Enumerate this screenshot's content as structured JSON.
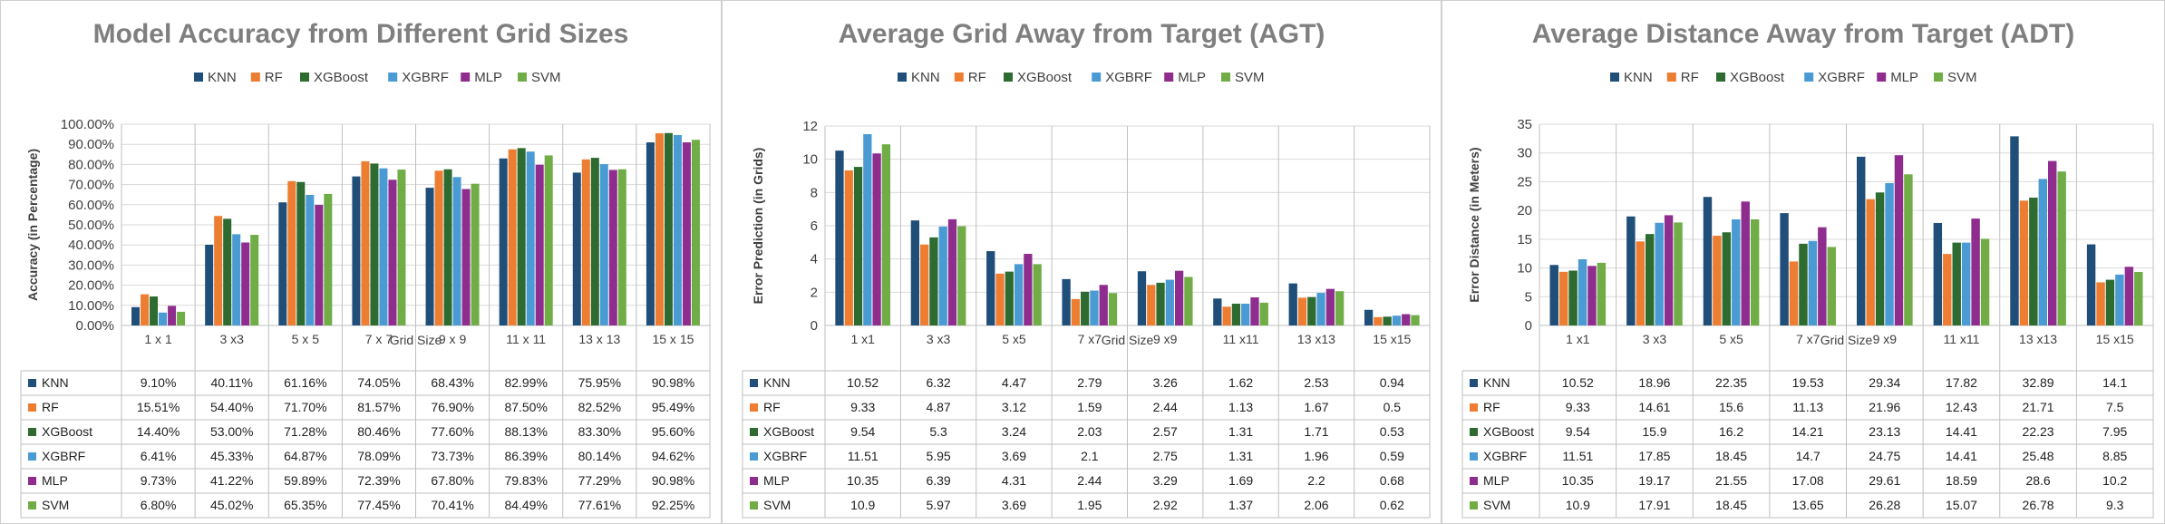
{
  "chart_data": [
    {
      "type": "bar",
      "title": "Model Accuracy from Different Grid Sizes",
      "xlabel": "Grid Size",
      "ylabel": "Accuracy (in Percentage)",
      "ylim": [
        0,
        100
      ],
      "ytick_values": [
        0,
        10,
        20,
        30,
        40,
        50,
        60,
        70,
        80,
        90,
        100
      ],
      "ytick_labels": [
        "0.00%",
        "10.00%",
        "20.00%",
        "30.00%",
        "40.00%",
        "50.00%",
        "60.00%",
        "70.00%",
        "80.00%",
        "90.00%",
        "100.00%"
      ],
      "categories": [
        "1 x 1",
        "3 x3",
        "5 x 5",
        "7 x 7",
        "9 x 9",
        "11 x 11",
        "13 x 13",
        "15 x 15"
      ],
      "legend_position": "top",
      "grid": true,
      "series": [
        {
          "name": "KNN",
          "color": "#1f4e79",
          "values": [
            9.1,
            40.11,
            61.16,
            74.05,
            68.43,
            82.99,
            75.95,
            90.98
          ],
          "labels": [
            "9.10%",
            "40.11%",
            "61.16%",
            "74.05%",
            "68.43%",
            "82.99%",
            "75.95%",
            "90.98%"
          ]
        },
        {
          "name": "RF",
          "color": "#ed7d31",
          "values": [
            15.51,
            54.4,
            71.7,
            81.57,
            76.9,
            87.5,
            82.52,
            95.49
          ],
          "labels": [
            "15.51%",
            "54.40%",
            "71.70%",
            "81.57%",
            "76.90%",
            "87.50%",
            "82.52%",
            "95.49%"
          ]
        },
        {
          "name": "XGBoost",
          "color": "#2e6b30",
          "values": [
            14.4,
            53.0,
            71.28,
            80.46,
            77.6,
            88.13,
            83.3,
            95.6
          ],
          "labels": [
            "14.40%",
            "53.00%",
            "71.28%",
            "80.46%",
            "77.60%",
            "88.13%",
            "83.30%",
            "95.60%"
          ]
        },
        {
          "name": "XGBRF",
          "color": "#4a9bd4",
          "values": [
            6.41,
            45.33,
            64.87,
            78.09,
            73.73,
            86.39,
            80.14,
            94.62
          ],
          "labels": [
            "6.41%",
            "45.33%",
            "64.87%",
            "78.09%",
            "73.73%",
            "86.39%",
            "80.14%",
            "94.62%"
          ]
        },
        {
          "name": "MLP",
          "color": "#8e2d8e",
          "values": [
            9.73,
            41.22,
            59.89,
            72.39,
            67.8,
            79.83,
            77.29,
            90.98
          ],
          "labels": [
            "9.73%",
            "41.22%",
            "59.89%",
            "72.39%",
            "67.80%",
            "79.83%",
            "77.29%",
            "90.98%"
          ]
        },
        {
          "name": "SVM",
          "color": "#70ad47",
          "values": [
            6.8,
            45.02,
            65.35,
            77.45,
            70.41,
            84.49,
            77.61,
            92.25
          ],
          "labels": [
            "6.80%",
            "45.02%",
            "65.35%",
            "77.45%",
            "70.41%",
            "84.49%",
            "77.61%",
            "92.25%"
          ]
        }
      ]
    },
    {
      "type": "bar",
      "title": "Average Grid Away from Target (AGT)",
      "xlabel": "Grid Size",
      "ylabel": "Error Prediction (in Grids)",
      "ylim": [
        0,
        12
      ],
      "ytick_values": [
        0,
        2,
        4,
        6,
        8,
        10,
        12
      ],
      "ytick_labels": [
        "0",
        "2",
        "4",
        "6",
        "8",
        "10",
        "12"
      ],
      "categories": [
        "1 x1",
        "3 x3",
        "5 x5",
        "7 x7",
        "9 x9",
        "11 x11",
        "13 x13",
        "15 x15"
      ],
      "legend_position": "top",
      "grid": true,
      "series": [
        {
          "name": "KNN",
          "color": "#1f4e79",
          "values": [
            10.52,
            6.32,
            4.47,
            2.79,
            3.26,
            1.62,
            2.53,
            0.94
          ],
          "labels": [
            "10.52",
            "6.32",
            "4.47",
            "2.79",
            "3.26",
            "1.62",
            "2.53",
            "0.94"
          ]
        },
        {
          "name": "RF",
          "color": "#ed7d31",
          "values": [
            9.33,
            4.87,
            3.12,
            1.59,
            2.44,
            1.13,
            1.67,
            0.5
          ],
          "labels": [
            "9.33",
            "4.87",
            "3.12",
            "1.59",
            "2.44",
            "1.13",
            "1.67",
            "0.5"
          ]
        },
        {
          "name": "XGBoost",
          "color": "#2e6b30",
          "values": [
            9.54,
            5.3,
            3.24,
            2.03,
            2.57,
            1.31,
            1.71,
            0.53
          ],
          "labels": [
            "9.54",
            "5.3",
            "3.24",
            "2.03",
            "2.57",
            "1.31",
            "1.71",
            "0.53"
          ]
        },
        {
          "name": "XGBRF",
          "color": "#4a9bd4",
          "values": [
            11.51,
            5.95,
            3.69,
            2.1,
            2.75,
            1.31,
            1.96,
            0.59
          ],
          "labels": [
            "11.51",
            "5.95",
            "3.69",
            "2.1",
            "2.75",
            "1.31",
            "1.96",
            "0.59"
          ]
        },
        {
          "name": "MLP",
          "color": "#8e2d8e",
          "values": [
            10.35,
            6.39,
            4.31,
            2.44,
            3.29,
            1.69,
            2.2,
            0.68
          ],
          "labels": [
            "10.35",
            "6.39",
            "4.31",
            "2.44",
            "3.29",
            "1.69",
            "2.2",
            "0.68"
          ]
        },
        {
          "name": "SVM",
          "color": "#70ad47",
          "values": [
            10.9,
            5.97,
            3.69,
            1.95,
            2.92,
            1.37,
            2.06,
            0.62
          ],
          "labels": [
            "10.9",
            "5.97",
            "3.69",
            "1.95",
            "2.92",
            "1.37",
            "2.06",
            "0.62"
          ]
        }
      ]
    },
    {
      "type": "bar",
      "title": "Average Distance Away from Target (ADT)",
      "xlabel": "Grid Size",
      "ylabel": "Error Distance (in Meters)",
      "ylim": [
        0,
        35
      ],
      "ytick_values": [
        0,
        5,
        10,
        15,
        20,
        25,
        30,
        35
      ],
      "ytick_labels": [
        "0",
        "5",
        "10",
        "15",
        "20",
        "25",
        "30",
        "35"
      ],
      "categories": [
        "1 x1",
        "3 x3",
        "5 x5",
        "7 x7",
        "9 x9",
        "11 x11",
        "13 x13",
        "15 x15"
      ],
      "legend_position": "top",
      "grid": true,
      "series": [
        {
          "name": "KNN",
          "color": "#1f4e79",
          "values": [
            10.52,
            18.96,
            22.35,
            19.53,
            29.34,
            17.82,
            32.89,
            14.1
          ],
          "labels": [
            "10.52",
            "18.96",
            "22.35",
            "19.53",
            "29.34",
            "17.82",
            "32.89",
            "14.1"
          ]
        },
        {
          "name": "RF",
          "color": "#ed7d31",
          "values": [
            9.33,
            14.61,
            15.6,
            11.13,
            21.96,
            12.43,
            21.71,
            7.5
          ],
          "labels": [
            "9.33",
            "14.61",
            "15.6",
            "11.13",
            "21.96",
            "12.43",
            "21.71",
            "7.5"
          ]
        },
        {
          "name": "XGBoost",
          "color": "#2e6b30",
          "values": [
            9.54,
            15.9,
            16.2,
            14.21,
            23.13,
            14.41,
            22.23,
            7.95
          ],
          "labels": [
            "9.54",
            "15.9",
            "16.2",
            "14.21",
            "23.13",
            "14.41",
            "22.23",
            "7.95"
          ]
        },
        {
          "name": "XGBRF",
          "color": "#4a9bd4",
          "values": [
            11.51,
            17.85,
            18.45,
            14.7,
            24.75,
            14.41,
            25.48,
            8.85
          ],
          "labels": [
            "11.51",
            "17.85",
            "18.45",
            "14.7",
            "24.75",
            "14.41",
            "25.48",
            "8.85"
          ]
        },
        {
          "name": "MLP",
          "color": "#8e2d8e",
          "values": [
            10.35,
            19.17,
            21.55,
            17.08,
            29.61,
            18.59,
            28.6,
            10.2
          ],
          "labels": [
            "10.35",
            "19.17",
            "21.55",
            "17.08",
            "29.61",
            "18.59",
            "28.6",
            "10.2"
          ]
        },
        {
          "name": "SVM",
          "color": "#70ad47",
          "values": [
            10.9,
            17.91,
            18.45,
            13.65,
            26.28,
            15.07,
            26.78,
            9.3
          ],
          "labels": [
            "10.9",
            "17.91",
            "18.45",
            "13.65",
            "26.28",
            "15.07",
            "26.78",
            "9.3"
          ]
        }
      ]
    }
  ]
}
